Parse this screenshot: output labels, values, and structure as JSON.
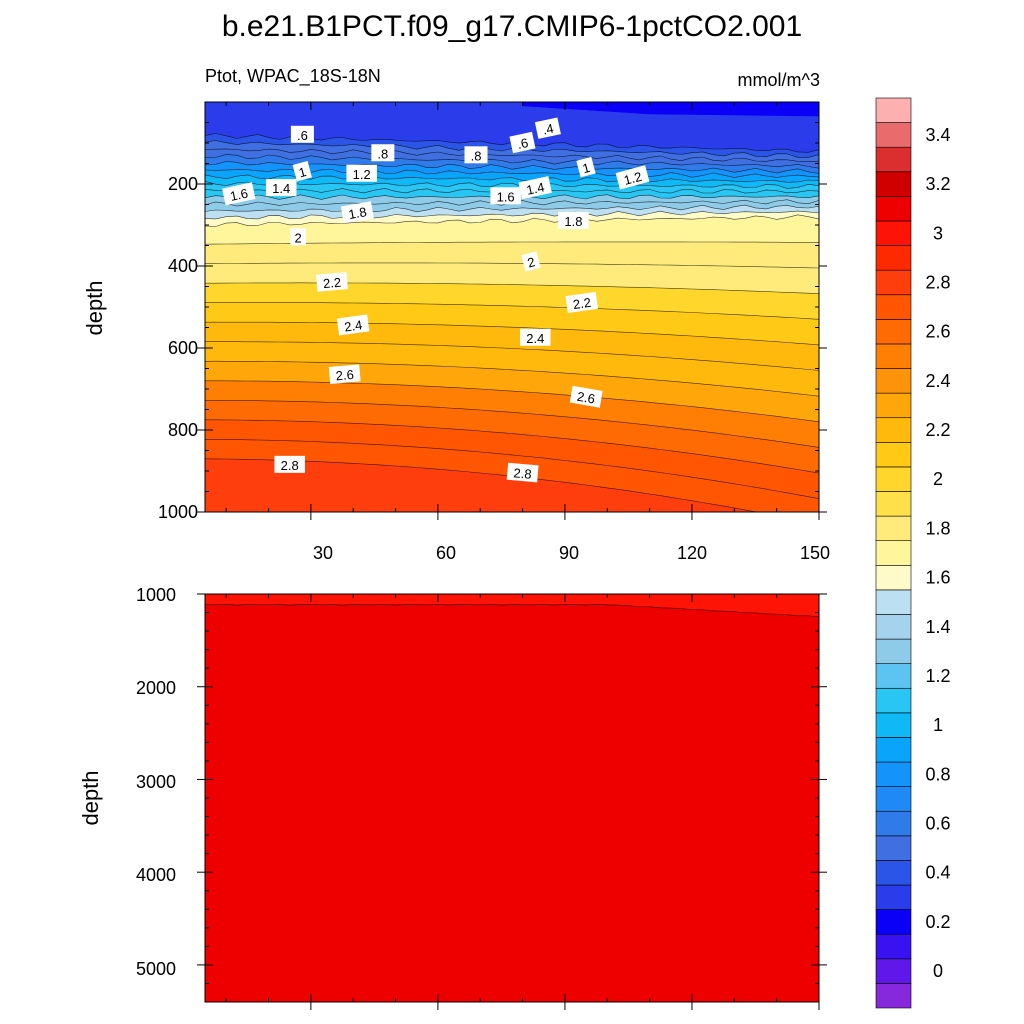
{
  "chart_data": {
    "type": "heatmap",
    "title": "b.e21.B1PCT.f09_g17.CMIP6-1pctCO2.001",
    "variable_label": "Ptot, WPAC_18S-18N",
    "units": "mmol/m^3",
    "colormap": [
      "#8629dc",
      "#5f17ea",
      "#3912f2",
      "#0a00f7",
      "#2b3cea",
      "#2a55e6",
      "#3f6fe0",
      "#2f7bea",
      "#1f89f5",
      "#1493fb",
      "#0ba4fb",
      "#10b9f5",
      "#29c6f3",
      "#5dc3f0",
      "#8ecbe9",
      "#a5d3ee",
      "#bcdff1",
      "#fffbc8",
      "#fff59b",
      "#feeb7c",
      "#fde04a",
      "#fed62c",
      "#ffc916",
      "#ffb90c",
      "#fea60a",
      "#fd930a",
      "#ff7f05",
      "#fe6b04",
      "#fe5603",
      "#fe3e0d",
      "#fd2a00",
      "#fe1407",
      "#ee0000",
      "#d00000",
      "#db2f2f",
      "#ea6b6b",
      "#fdb0b0"
    ],
    "colorbar_labels": [
      "0",
      "0.2",
      "0.4",
      "0.6",
      "0.8",
      "1",
      "1.2",
      "1.4",
      "1.6",
      "1.8",
      "2",
      "2.2",
      "2.4",
      "2.6",
      "2.8",
      "3",
      "3.2",
      "3.4"
    ],
    "panels": [
      {
        "x": [
          5,
          30,
          60,
          90,
          120,
          150
        ],
        "xticklabels": [
          "30",
          "60",
          "90",
          "120",
          "150"
        ],
        "ylabel": "depth",
        "ylim": [
          0,
          1000
        ],
        "yticklabels": [
          "200",
          "400",
          "600",
          "800",
          "1000"
        ],
        "contour_labels": [
          ".6",
          ".4",
          ".6",
          ".8",
          ".8",
          "1",
          "1",
          "1.2",
          "1.2",
          "1.4",
          "1.4",
          "1.6",
          "1.6",
          "1.8",
          "1.8",
          "2",
          "2",
          "2.2",
          "2.2",
          "2.4",
          "2.4",
          "2.6",
          "2.6",
          "2.8",
          "2.8"
        ]
      },
      {
        "ylabel": "depth",
        "ylim": [
          1000,
          5400
        ],
        "yticklabels": [
          "1000",
          "2000",
          "3000",
          "4000",
          "5000"
        ]
      }
    ]
  }
}
